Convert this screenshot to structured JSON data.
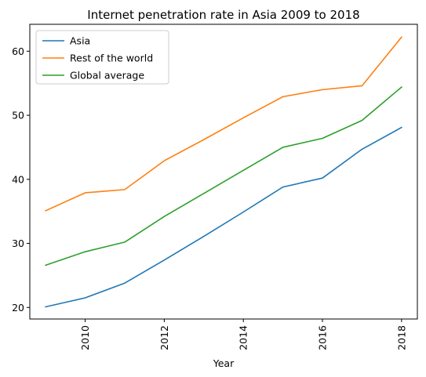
{
  "chart_data": {
    "type": "line",
    "title": "Internet penetration rate in Asia 2009 to 2018",
    "xlabel": "Year",
    "ylabel": "",
    "x": [
      2009,
      2010,
      2011,
      2012,
      2013,
      2014,
      2015,
      2016,
      2017,
      2018
    ],
    "xlim": [
      2008.6,
      2018.4
    ],
    "ylim": [
      18.2,
      64.2
    ],
    "xticks": [
      "2010",
      "2012",
      "2014",
      "2016",
      "2018"
    ],
    "yticks": [
      "20",
      "30",
      "40",
      "50",
      "60"
    ],
    "xtick_rotation": "vertical",
    "grid": false,
    "legend_position": "upper left",
    "series": [
      {
        "name": "Asia",
        "color": "#1f77b4",
        "values": [
          20.1,
          21.5,
          23.8,
          27.4,
          31.1,
          34.9,
          38.8,
          40.2,
          44.7,
          48.1
        ]
      },
      {
        "name": "Rest of the world",
        "color": "#ff7f0e",
        "values": [
          35.1,
          37.9,
          38.4,
          42.9,
          46.2,
          49.6,
          52.9,
          54.0,
          54.6,
          62.2
        ]
      },
      {
        "name": "Global average",
        "color": "#2ca02c",
        "values": [
          26.6,
          28.7,
          30.2,
          34.2,
          37.8,
          41.4,
          45.0,
          46.4,
          49.2,
          54.4
        ]
      }
    ]
  }
}
